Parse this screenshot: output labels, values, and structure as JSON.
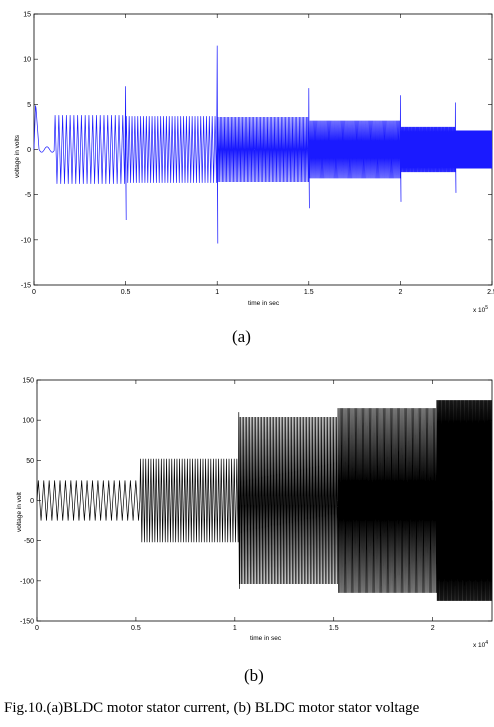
{
  "figure": {
    "caption": "Fig.10.(a)BLDC motor stator current, (b) BLDC motor stator voltage"
  },
  "chart_data": [
    {
      "type": "line",
      "panel_label": "(a)",
      "xlabel": "time in sec",
      "ylabel": "voltage in volts",
      "x_multiplier_label": "x 10",
      "x_multiplier_exp": "5",
      "xlim": [
        0,
        2.5
      ],
      "ylim": [
        -15,
        15
      ],
      "xticks": [
        "0",
        "0.5",
        "1",
        "1.5",
        "2",
        "2.5"
      ],
      "yticks": [
        "15",
        "10",
        "5",
        "0",
        "-5",
        "-10",
        "-15"
      ],
      "ytick_values": [
        15,
        10,
        5,
        0,
        -5,
        -10,
        -15
      ],
      "xtick_values": [
        0,
        0.5,
        1,
        1.5,
        2,
        2.5
      ],
      "grid": false,
      "line_color": "#1a1aff",
      "series": [
        {
          "segments": [
            {
              "x_start": 0.0,
              "x_end": 0.11,
              "amplitude": 0,
              "cycles": 0,
              "startup_peak": 5.2
            },
            {
              "x_start": 0.11,
              "x_end": 0.5,
              "amplitude": 3.8,
              "cycles": 19
            },
            {
              "x_start": 0.5,
              "x_end": 1.0,
              "amplitude": 3.7,
              "cycles": 32
            },
            {
              "x_start": 1.0,
              "x_end": 1.5,
              "amplitude": 3.6,
              "cycles": 66
            },
            {
              "x_start": 1.5,
              "x_end": 2.0,
              "amplitude": 3.2,
              "cycles": 85
            },
            {
              "x_start": 2.0,
              "x_end": 2.3,
              "amplitude": 2.5,
              "cycles": 70
            },
            {
              "x_start": 2.3,
              "x_end": 2.5,
              "amplitude": 2.1,
              "cycles": 70
            }
          ],
          "spikes": [
            {
              "x": 0.5,
              "up": 7.0,
              "down": -7.8
            },
            {
              "x": 1.0,
              "up": 11.5,
              "down": -10.4
            },
            {
              "x": 1.5,
              "up": 6.8,
              "down": -6.5
            },
            {
              "x": 2.0,
              "up": 6.0,
              "down": -5.8
            },
            {
              "x": 2.3,
              "up": 5.2,
              "down": -4.8
            }
          ]
        }
      ]
    },
    {
      "type": "line",
      "panel_label": "(b)",
      "xlabel": "time in sec",
      "ylabel": "voltage in volt",
      "x_multiplier_label": "x 10",
      "x_multiplier_exp": "4",
      "xlim": [
        0,
        2.3
      ],
      "ylim": [
        -150,
        150
      ],
      "xticks": [
        "0",
        "0.5",
        "1",
        "1.5",
        "2"
      ],
      "yticks": [
        "150",
        "100",
        "50",
        "0",
        "-50",
        "-100",
        "-150"
      ],
      "ytick_values": [
        150,
        100,
        50,
        0,
        -50,
        -100,
        -150
      ],
      "xtick_values": [
        0,
        0.5,
        1,
        1.5,
        2
      ],
      "grid": false,
      "line_color": "#000000",
      "series": [
        {
          "segments": [
            {
              "x_start": 0.0,
              "x_end": 0.52,
              "amplitude": 25,
              "cycles": 19
            },
            {
              "x_start": 0.52,
              "x_end": 1.02,
              "amplitude": 52,
              "cycles": 38
            },
            {
              "x_start": 1.02,
              "x_end": 1.52,
              "amplitude": 104,
              "cycles": 66
            },
            {
              "x_start": 1.52,
              "x_end": 2.02,
              "amplitude": 115,
              "cycles": 85
            },
            {
              "x_start": 2.02,
              "x_end": 2.3,
              "amplitude": 125,
              "cycles": 70
            }
          ],
          "spikes": [
            {
              "x": 1.02,
              "up": 110,
              "down": -110
            }
          ]
        }
      ]
    }
  ]
}
